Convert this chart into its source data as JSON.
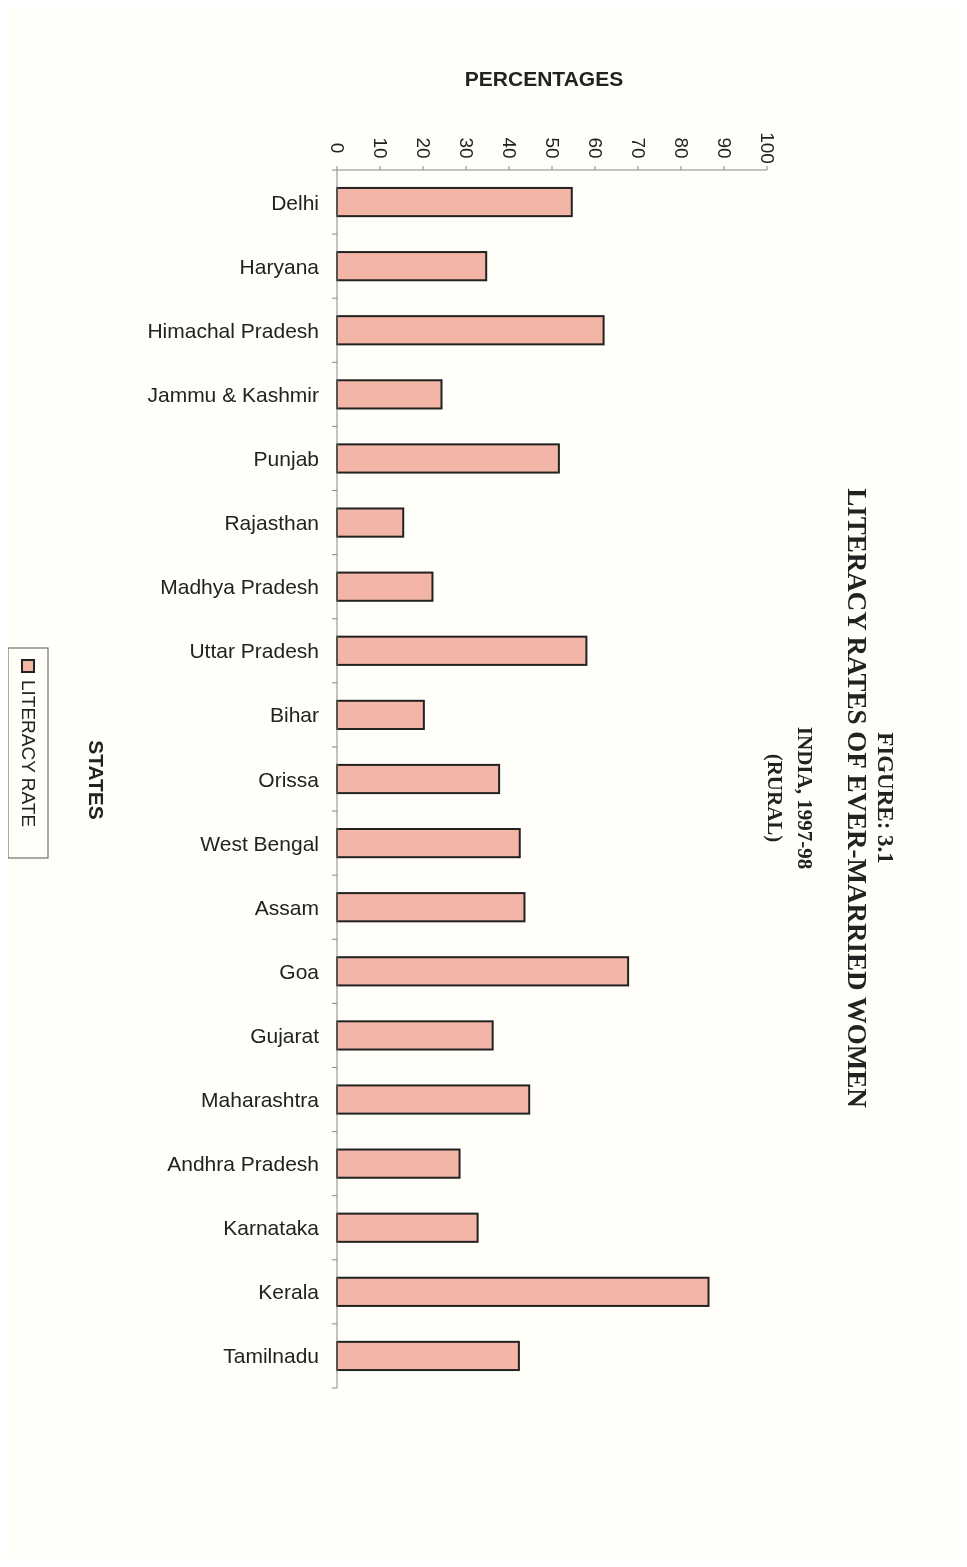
{
  "chart_data": {
    "type": "bar",
    "orientation": "horizontal",
    "title": "FIGURE: 3.1\nLITERACY RATES OF EVER-MARRIED WOMEN",
    "subtitle": "INDIA, 1997-98\n(RURAL)",
    "xlabel": "PERCENTAGES",
    "ylabel": "STATES",
    "categories": [
      "Delhi",
      "Haryana",
      "Himachal Pradesh",
      "Jammu & Kashmir",
      "Punjab",
      "Rajasthan",
      "Madhya Pradesh",
      "Uttar Pradesh",
      "Bihar",
      "Orissa",
      "West Bengal",
      "Assam",
      "Goa",
      "Gujarat",
      "Maharashtra",
      "Andhra Pradesh",
      "Karnataka",
      "Kerala",
      "Tamilnadu"
    ],
    "series": [
      {
        "name": "LITERACY RATE",
        "color": "#f3b5a5",
        "values": [
          54.6,
          34.7,
          62,
          24.3,
          51.6,
          15.4,
          22.2,
          58,
          20.2,
          37.7,
          42.5,
          43.6,
          67.7,
          36.2,
          44.7,
          28.5,
          32.7,
          86.4,
          42.3
        ]
      }
    ],
    "xlim": [
      0,
      100
    ],
    "xticks": [
      0,
      10,
      20,
      30,
      40,
      50,
      60,
      70,
      80,
      90,
      100
    ],
    "grid": false,
    "legend": "left"
  }
}
